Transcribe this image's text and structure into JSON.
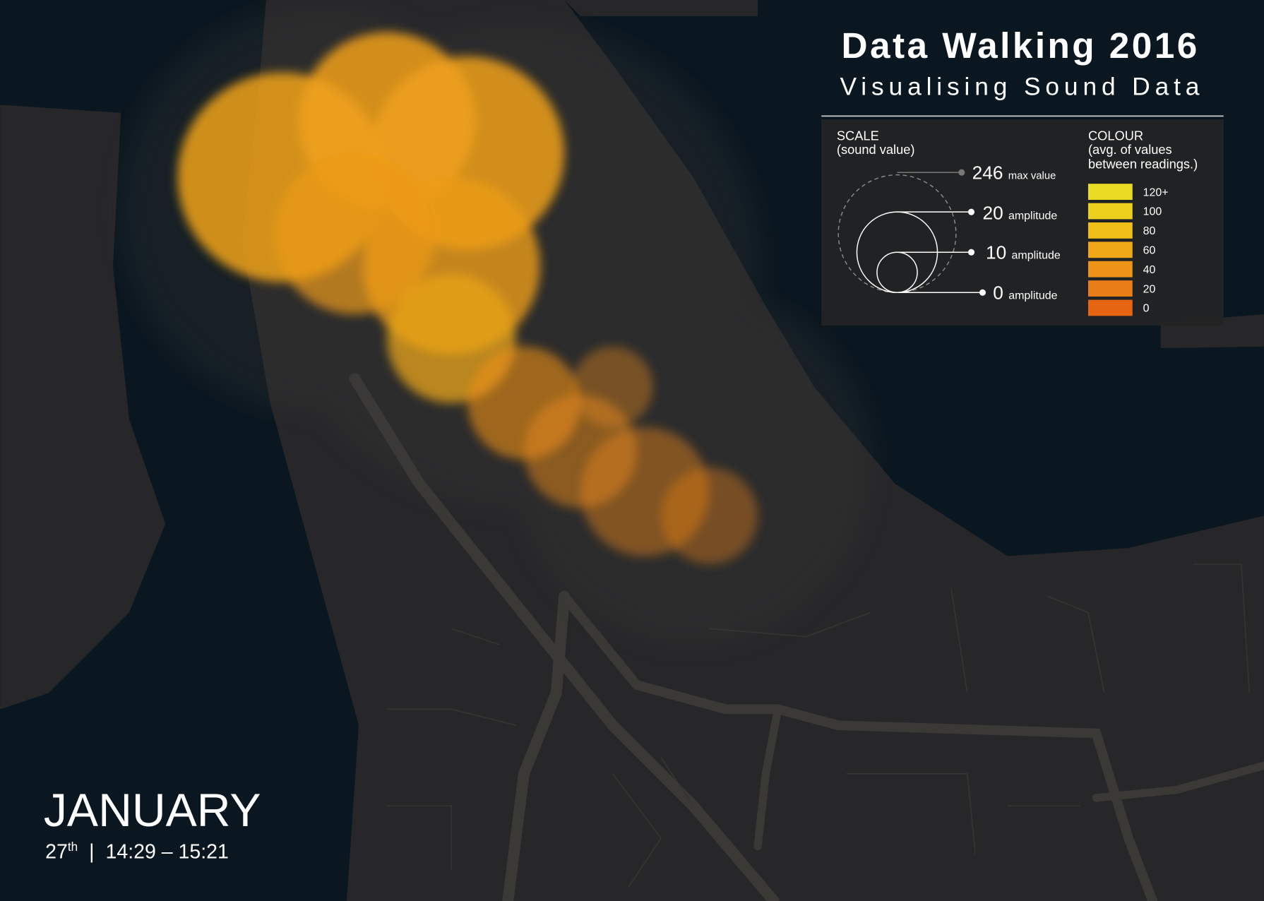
{
  "header": {
    "title": "Data Walking 2016",
    "subtitle": "Visualising Sound Data"
  },
  "scale_legend": {
    "title": "SCALE",
    "subtitle": "(sound value)",
    "items": [
      {
        "value": "246",
        "unit": "max value"
      },
      {
        "value": "20",
        "unit": "amplitude"
      },
      {
        "value": "10",
        "unit": "amplitude"
      },
      {
        "value": "0",
        "unit": "amplitude"
      }
    ]
  },
  "colour_legend": {
    "title": "COLOUR",
    "subtitle": [
      "(avg. of values",
      "between readings.)"
    ],
    "items": [
      {
        "label": "120+",
        "color": "#e9dc22"
      },
      {
        "label": "100",
        "color": "#edd01d"
      },
      {
        "label": "80",
        "color": "#f0be19"
      },
      {
        "label": "60",
        "color": "#f0a819"
      },
      {
        "label": "40",
        "color": "#ed9418"
      },
      {
        "label": "20",
        "color": "#e97d17"
      },
      {
        "label": "0",
        "color": "#e56512"
      }
    ]
  },
  "date": {
    "month": "JANUARY",
    "day": "27",
    "suffix": "th",
    "separator": "|",
    "time": "14:29 – 15:21"
  }
}
